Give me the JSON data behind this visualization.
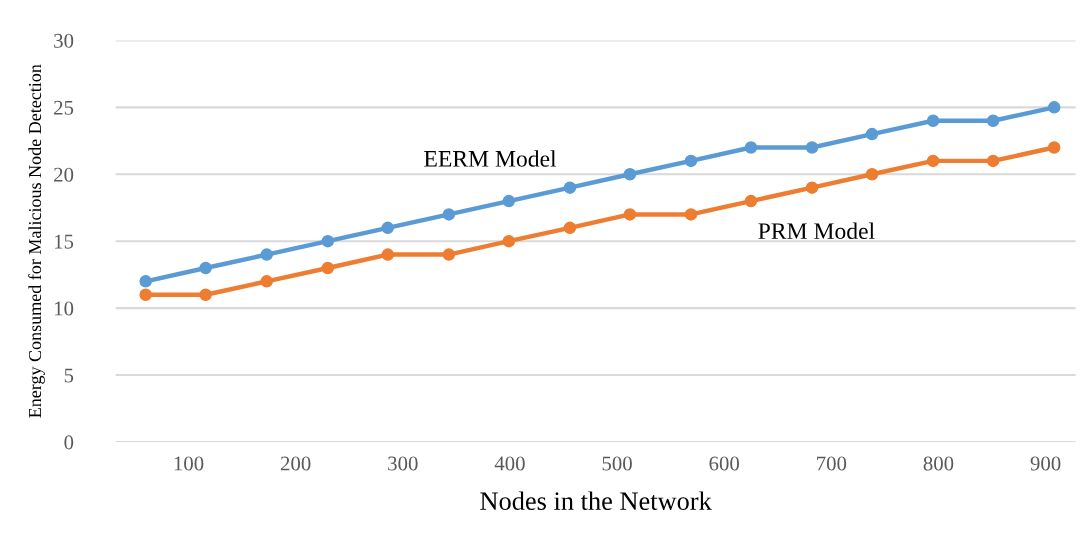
{
  "chart_data": {
    "type": "line",
    "xlabel": "Nodes in the Network",
    "ylabel": "Energy Consumed for Malicious Node Detection",
    "x": [
      60,
      116,
      173,
      230,
      286,
      343,
      399,
      456,
      512,
      569,
      625,
      682,
      738,
      795,
      851,
      908
    ],
    "series": [
      {
        "name": "EERM Model",
        "color": "#5b9bd5",
        "values": [
          12,
          13,
          14,
          15,
          16,
          17,
          18,
          19,
          20,
          21,
          22,
          22,
          23,
          24,
          24,
          25
        ]
      },
      {
        "name": "PRM Model",
        "color": "#ed7d31",
        "values": [
          11,
          11,
          12,
          13,
          14,
          14,
          15,
          16,
          17,
          17,
          18,
          19,
          20,
          21,
          21,
          22
        ]
      }
    ],
    "xlim": [
      32,
      928
    ],
    "xticks": [
      100,
      200,
      300,
      400,
      500,
      600,
      700,
      800,
      900
    ],
    "ylim": [
      0,
      30
    ],
    "yticks": [
      0,
      5,
      10,
      15,
      20,
      25,
      30
    ],
    "grid": "y",
    "legend": false,
    "marker": "circle",
    "line_style": "solid"
  }
}
